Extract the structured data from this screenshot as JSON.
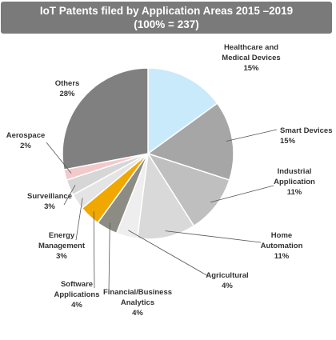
{
  "chart_data": {
    "type": "pie",
    "title": "IoT Patents filed by Application Areas 2015 –2019",
    "subtitle": "(100% = 237)",
    "slices": [
      {
        "label": [
          "Healthcare and",
          "Medical Devices"
        ],
        "value_label": "15%",
        "value": 15,
        "color": "#c9eafb"
      },
      {
        "label": [
          "Smart Devices"
        ],
        "value_label": "15%",
        "value": 15,
        "color": "#a6a6a6"
      },
      {
        "label": [
          "Industrial",
          "Application"
        ],
        "value_label": "11%",
        "value": 11,
        "color": "#bfbfbf"
      },
      {
        "label": [
          "Home",
          "Automation"
        ],
        "value_label": "11%",
        "value": 11,
        "color": "#d9d9d9"
      },
      {
        "label": [
          "Agricultural"
        ],
        "value_label": "4%",
        "value": 4,
        "color": "#eeeeee"
      },
      {
        "label": [
          "Financial/Business",
          "Analytics"
        ],
        "value_label": "4%",
        "value": 4,
        "color": "#8c8c84"
      },
      {
        "label": [
          "Software",
          "Applications"
        ],
        "value_label": "4%",
        "value": 4,
        "color": "#f0a800"
      },
      {
        "label": [
          "Energy",
          "Management"
        ],
        "value_label": "3%",
        "value": 3,
        "color": "#e4e4e4"
      },
      {
        "label": [
          "Surveillance"
        ],
        "value_label": "3%",
        "value": 3,
        "color": "#d6d6d6"
      },
      {
        "label": [
          "Aerospace"
        ],
        "value_label": "2%",
        "value": 2,
        "color": "#f4c9cc"
      },
      {
        "label": [
          "Others"
        ],
        "value_label": "28%",
        "value": 28,
        "color": "#808080"
      }
    ]
  }
}
